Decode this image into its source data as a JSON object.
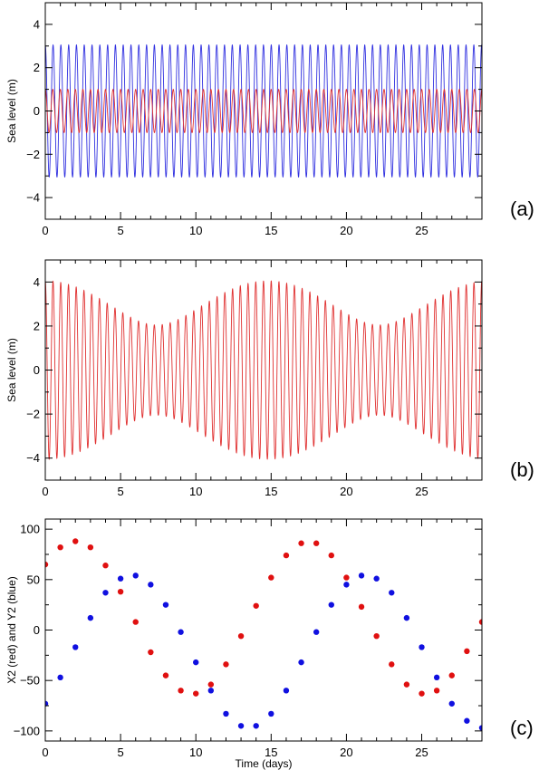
{
  "chart_data": [
    {
      "id": "a",
      "type": "line",
      "panel_label": "(a)",
      "ylabel": "Sea level (m)",
      "xlabel": "",
      "xlim": [
        0,
        29
      ],
      "ylim": [
        -5,
        5
      ],
      "xticks": [
        0,
        5,
        10,
        15,
        20,
        25
      ],
      "yticks": [
        -4,
        -2,
        0,
        2,
        4
      ],
      "grid": false,
      "series": [
        {
          "color": "#3030e0",
          "amplitude": 3.05,
          "period_days": 0.5175,
          "phase_deg": 0
        },
        {
          "color": "#e03030",
          "amplitude": 1.0,
          "period_days": 0.5,
          "phase_deg": 0
        }
      ]
    },
    {
      "id": "b",
      "type": "line",
      "panel_label": "(b)",
      "ylabel": "Sea level (m)",
      "xlabel": "",
      "xlim": [
        0,
        29
      ],
      "ylim": [
        -5,
        5
      ],
      "xticks": [
        0,
        5,
        10,
        15,
        20,
        25
      ],
      "yticks": [
        -4,
        -2,
        0,
        2,
        4
      ],
      "grid": false,
      "series": [
        {
          "color": "#e03030",
          "components": [
            {
              "amplitude": 3.05,
              "period_days": 0.5175,
              "phase_deg": 0
            },
            {
              "amplitude": 1.0,
              "period_days": 0.5,
              "phase_deg": 0
            }
          ]
        }
      ]
    },
    {
      "id": "c",
      "type": "scatter",
      "panel_label": "(c)",
      "ylabel": "X2 (red) and Y2 (blue)",
      "xlabel": "Time (days)",
      "xlim": [
        0,
        29
      ],
      "ylim": [
        -110,
        110
      ],
      "xticks": [
        0,
        5,
        10,
        15,
        20,
        25
      ],
      "yticks": [
        -100,
        -50,
        0,
        50,
        100
      ],
      "grid": false,
      "series": [
        {
          "name": "X2",
          "color": "#e01010",
          "x": [
            0,
            1,
            2,
            3,
            4,
            5,
            6,
            7,
            8,
            9,
            10,
            11,
            12,
            13,
            14,
            15,
            16,
            17,
            18,
            19,
            20,
            21,
            22,
            23,
            24,
            25,
            26,
            27,
            28,
            29
          ],
          "y": [
            65,
            82,
            88,
            82,
            64,
            38,
            8,
            -22,
            -45,
            -60,
            -63,
            -54,
            -34,
            -6,
            24,
            52,
            74,
            86,
            86,
            74,
            52,
            23,
            -6,
            -34,
            -54,
            -63,
            -60,
            -45,
            -21,
            8
          ]
        },
        {
          "name": "Y2",
          "color": "#1010e0",
          "x": [
            0,
            1,
            2,
            3,
            4,
            5,
            6,
            7,
            8,
            9,
            10,
            11,
            12,
            13,
            14,
            15,
            16,
            17,
            18,
            19,
            20,
            21,
            22,
            23,
            24,
            25,
            26,
            27,
            28,
            29
          ],
          "y": [
            -73,
            -47,
            -17,
            12,
            37,
            51,
            54,
            45,
            25,
            -2,
            -32,
            -60,
            -83,
            -95,
            -95,
            -83,
            -60,
            -32,
            -2,
            25,
            45,
            54,
            51,
            37,
            12,
            -17,
            -47,
            -73,
            -90,
            -97
          ]
        }
      ]
    }
  ]
}
